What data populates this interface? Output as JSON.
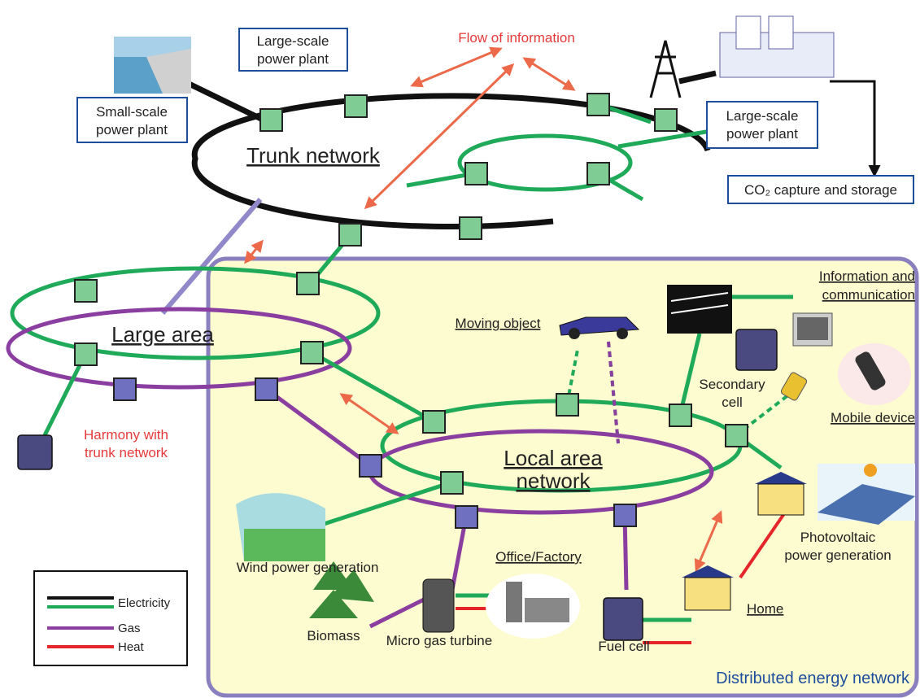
{
  "boxes": {
    "small_plant": [
      "Small-scale",
      "power plant"
    ],
    "large_plant_top": [
      "Large-scale",
      "power plant"
    ],
    "large_plant_right": [
      "Large-scale",
      "power plant"
    ],
    "ccs": "CO₂ capture and storage"
  },
  "flow_of_information": "Flow of information",
  "networks": {
    "trunk": "Trunk network",
    "large_area": "Large area",
    "local_area": [
      "Local area",
      "network"
    ]
  },
  "harmony": [
    "Harmony with",
    "trunk network"
  ],
  "devices": {
    "information": [
      "Information and",
      "communication"
    ],
    "moving_object": "Moving object",
    "secondary_cell": [
      "Secondary",
      "cell"
    ],
    "mobile_device": "Mobile device",
    "photovoltaic": [
      "Photovoltaic",
      "power generation"
    ],
    "wind": "Wind power generation",
    "office": "Office/Factory",
    "home": "Home",
    "biomass": "Biomass",
    "micro_gas_turbine": "Micro gas turbine",
    "fuel_cell": "Fuel cell"
  },
  "legend": {
    "items": [
      "Electricity",
      "Gas",
      "Heat"
    ]
  },
  "region": "Distributed energy network"
}
